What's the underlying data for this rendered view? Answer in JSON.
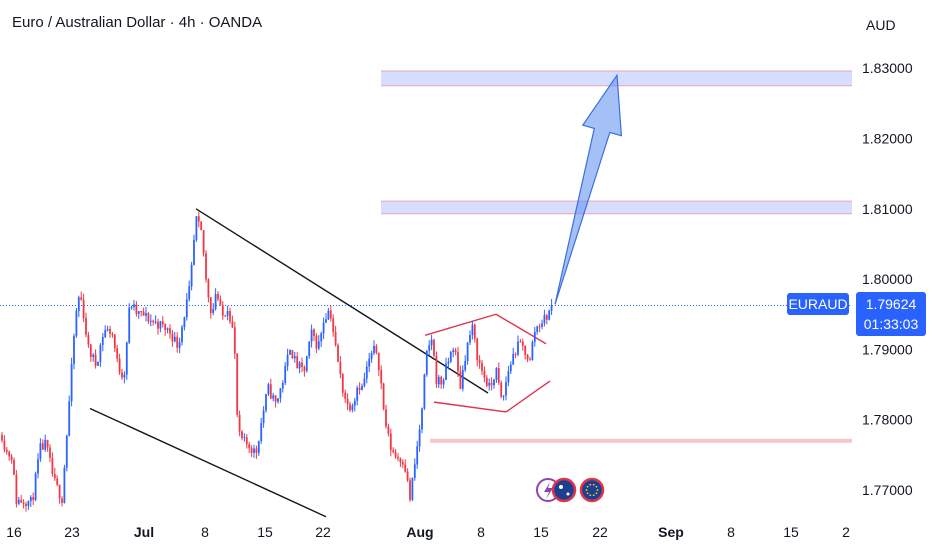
{
  "header": {
    "title": "Euro / Australian Dollar · 4h · OANDA",
    "currency": "AUD"
  },
  "price_tag": {
    "symbol": "EURAUD",
    "price": "1.79624",
    "countdown": "01:33:03"
  },
  "colors": {
    "up": "#2962ff",
    "down": "#f23645",
    "line": "#131722",
    "wedge": "#e0344a",
    "zone": "#c7d3ff",
    "arrow": "#5b8def"
  },
  "chart_data": {
    "type": "candlestick",
    "yticks": [
      1.83,
      1.82,
      1.81,
      1.8,
      1.79,
      1.78,
      1.77
    ],
    "ytick_labels": [
      "1.83000",
      "1.82000",
      "1.81000",
      "1.80000",
      "1.79000",
      "1.78000",
      "1.77000"
    ],
    "ylim": [
      1.7655,
      1.8365
    ],
    "xticks": [
      {
        "label": "16",
        "bold": false
      },
      {
        "label": "23",
        "bold": false
      },
      {
        "label": "Jul",
        "bold": true
      },
      {
        "label": "8",
        "bold": false
      },
      {
        "label": "15",
        "bold": false
      },
      {
        "label": "22",
        "bold": false
      },
      {
        "label": "Aug",
        "bold": true
      },
      {
        "label": "8",
        "bold": false
      },
      {
        "label": "15",
        "bold": false
      },
      {
        "label": "22",
        "bold": false
      },
      {
        "label": "Sep",
        "bold": true
      },
      {
        "label": "8",
        "bold": false
      },
      {
        "label": "15",
        "bold": false
      },
      {
        "label": "2",
        "bold": false
      }
    ],
    "last_price": 1.79624,
    "path": [
      [
        0,
        1.779
      ],
      [
        6,
        1.7755
      ],
      [
        12,
        1.7748
      ],
      [
        16,
        1.7685
      ],
      [
        26,
        1.7685
      ],
      [
        32,
        1.7682
      ],
      [
        40,
        1.7758
      ],
      [
        46,
        1.7765
      ],
      [
        54,
        1.7712
      ],
      [
        62,
        1.7688
      ],
      [
        68,
        1.7802
      ],
      [
        74,
        1.7918
      ],
      [
        78,
        1.7975
      ],
      [
        82,
        1.7968
      ],
      [
        88,
        1.7902
      ],
      [
        96,
        1.7878
      ],
      [
        104,
        1.7928
      ],
      [
        112,
        1.7925
      ],
      [
        118,
        1.7875
      ],
      [
        124,
        1.7862
      ],
      [
        130,
        1.7968
      ],
      [
        136,
        1.7952
      ],
      [
        144,
        1.7948
      ],
      [
        152,
        1.794
      ],
      [
        160,
        1.7935
      ],
      [
        170,
        1.7925
      ],
      [
        178,
        1.7905
      ],
      [
        184,
        1.7948
      ],
      [
        190,
        1.7988
      ],
      [
        196,
        1.8085
      ],
      [
        202,
        1.8062
      ],
      [
        206,
        1.7998
      ],
      [
        212,
        1.7948
      ],
      [
        216,
        1.7985
      ],
      [
        222,
        1.7945
      ],
      [
        228,
        1.7962
      ],
      [
        234,
        1.7918
      ],
      [
        238,
        1.7778
      ],
      [
        244,
        1.7768
      ],
      [
        250,
        1.7762
      ],
      [
        256,
        1.7752
      ],
      [
        262,
        1.7802
      ],
      [
        268,
        1.7845
      ],
      [
        276,
        1.7822
      ],
      [
        284,
        1.7862
      ],
      [
        290,
        1.7905
      ],
      [
        296,
        1.7878
      ],
      [
        304,
        1.7868
      ],
      [
        312,
        1.7925
      ],
      [
        318,
        1.7902
      ],
      [
        324,
        1.7945
      ],
      [
        330,
        1.7958
      ],
      [
        336,
        1.7898
      ],
      [
        342,
        1.7848
      ],
      [
        348,
        1.7818
      ],
      [
        354,
        1.7828
      ],
      [
        358,
        1.7852
      ],
      [
        362,
        1.7845
      ],
      [
        366,
        1.7868
      ],
      [
        370,
        1.7888
      ],
      [
        376,
        1.7902
      ],
      [
        380,
        1.7868
      ],
      [
        384,
        1.7808
      ],
      [
        390,
        1.7762
      ],
      [
        396,
        1.7748
      ],
      [
        404,
        1.7742
      ],
      [
        410,
        1.7688
      ],
      [
        416,
        1.7748
      ],
      [
        422,
        1.7812
      ],
      [
        426,
        1.7888
      ],
      [
        432,
        1.7918
      ],
      [
        436,
        1.7858
      ],
      [
        442,
        1.7852
      ],
      [
        448,
        1.7882
      ],
      [
        454,
        1.7908
      ],
      [
        460,
        1.7845
      ],
      [
        466,
        1.7898
      ],
      [
        472,
        1.7932
      ],
      [
        478,
        1.7885
      ],
      [
        484,
        1.7862
      ],
      [
        490,
        1.7842
      ],
      [
        496,
        1.7872
      ],
      [
        502,
        1.7822
      ],
      [
        508,
        1.7868
      ],
      [
        514,
        1.7895
      ],
      [
        520,
        1.7908
      ],
      [
        526,
        1.7895
      ],
      [
        530,
        1.7882
      ],
      [
        534,
        1.7925
      ],
      [
        540,
        1.7938
      ],
      [
        546,
        1.7945
      ],
      [
        552,
        1.79624
      ]
    ],
    "zones": [
      {
        "from": 1.8275,
        "to": 1.8296
      },
      {
        "from": 1.8093,
        "to": 1.8111
      }
    ],
    "support_line": 1.777,
    "last_price_line": 1.79624,
    "wedge_lines": [
      {
        "p1": [
          196,
          1.81
        ],
        "p2": [
          488,
          1.7838
        ]
      },
      {
        "p1": [
          90,
          1.7816
        ],
        "p2": [
          326,
          1.7662
        ]
      }
    ],
    "pattern_lines": [
      {
        "p1": [
          425,
          1.792
        ],
        "p2": [
          496,
          1.795
        ]
      },
      {
        "p1": [
          496,
          1.795
        ],
        "p2": [
          546,
          1.7908
        ]
      },
      {
        "p1": [
          434,
          1.7825
        ],
        "p2": [
          506,
          1.7811
        ]
      },
      {
        "p1": [
          506,
          1.7811
        ],
        "p2": [
          550,
          1.7855
        ]
      }
    ],
    "arrow": {
      "from": [
        555,
        1.7964
      ],
      "to": [
        617,
        1.829
      ]
    }
  }
}
